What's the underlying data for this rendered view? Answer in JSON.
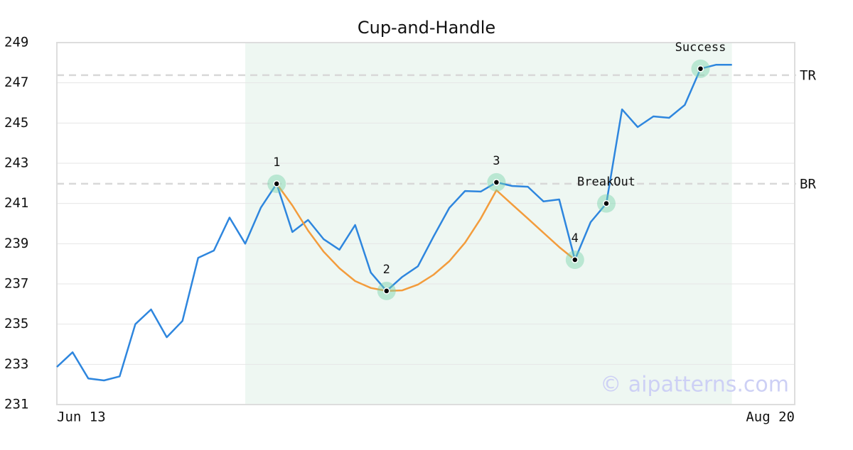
{
  "chart_data": {
    "type": "line",
    "title": "Cup-and-Handle",
    "categories": [
      "Jun 13",
      null,
      null,
      null,
      null,
      null,
      null,
      null,
      null,
      null,
      null,
      null,
      null,
      null,
      null,
      null,
      null,
      null,
      null,
      null,
      null,
      null,
      null,
      null,
      null,
      null,
      null,
      null,
      null,
      null,
      null,
      null,
      null,
      null,
      null,
      null,
      null,
      null,
      null,
      null,
      null,
      null,
      null,
      null,
      null,
      null,
      null,
      "Aug 20"
    ],
    "series": [
      {
        "color": "#2e86de",
        "values": [
          232.87,
          233.6,
          232.3,
          232.2,
          232.4,
          235.0,
          235.73,
          234.35,
          235.16,
          238.3,
          238.66,
          240.3,
          239.0,
          240.8,
          241.98,
          239.58,
          240.18,
          239.22,
          238.7,
          239.93,
          237.56,
          236.65,
          237.35,
          237.88,
          239.36,
          240.78,
          241.62,
          241.59,
          242.05,
          241.87,
          241.83,
          241.1,
          241.2,
          238.2,
          240.07,
          241.0,
          245.68,
          244.8,
          245.33,
          245.26,
          245.9,
          247.7,
          247.9,
          247.9,
          null,
          null,
          null,
          null
        ]
      },
      {
        "color": "#f39c3c",
        "values": [
          null,
          null,
          null,
          null,
          null,
          null,
          null,
          null,
          null,
          null,
          null,
          null,
          null,
          null,
          241.98,
          240.9,
          239.65,
          238.6,
          237.78,
          237.14,
          236.8,
          236.65,
          236.68,
          236.97,
          237.46,
          238.13,
          239.05,
          240.25,
          241.66,
          240.95,
          240.25,
          239.54,
          238.83,
          238.2,
          null,
          null,
          null,
          null,
          null,
          null,
          null,
          null,
          null,
          null,
          null,
          null,
          null,
          null
        ]
      }
    ],
    "ylim": [
      231,
      249
    ],
    "yticks": [
      231,
      233,
      235,
      237,
      239,
      241,
      243,
      245,
      247,
      249
    ],
    "grid": true,
    "shaded_range": [
      12,
      43
    ],
    "ref_lines": [
      {
        "label": "TR",
        "value": 247.38
      },
      {
        "label": "BR",
        "value": 241.98
      }
    ],
    "annotations": [
      {
        "label": "1",
        "index": 14
      },
      {
        "label": "2",
        "index": 21
      },
      {
        "label": "3",
        "index": 28
      },
      {
        "label": "4",
        "index": 33
      },
      {
        "label": "BreakOut",
        "index": 35
      },
      {
        "label": "Success",
        "index": 41
      }
    ],
    "watermark": "© aipatterns.com"
  }
}
